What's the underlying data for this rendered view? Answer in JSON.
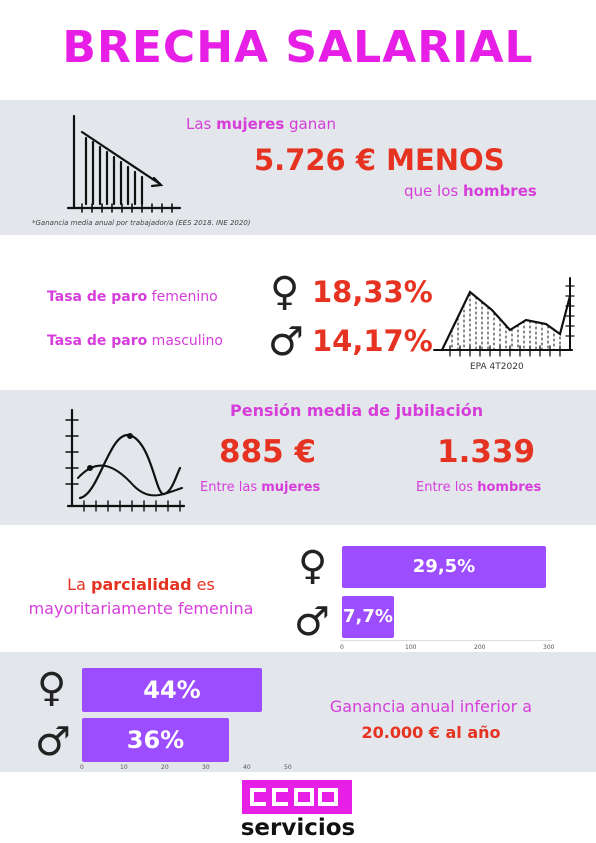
{
  "title": "BRECHA SALARIAL",
  "gap": {
    "line1_pre": "Las ",
    "line1_bold": "mujeres",
    "line1_post": " ganan",
    "amount": "5.726 € MENOS",
    "line3_pre": "que los ",
    "line3_bold": "hombres",
    "footnote": "*Ganancia media anual por trabajador/a (EES 2018. INE 2020)"
  },
  "unemployment": {
    "female_bold": "Tasa de paro",
    "female_rest": " femenino",
    "female_value": "18,33%",
    "male_bold": "Tasa de paro",
    "male_rest": " masculino",
    "male_value": "14,17%",
    "source": "EPA 4T2020"
  },
  "pension": {
    "heading": "Pensión media de jubilación",
    "women_value": "885 €",
    "women_pre": "Entre las ",
    "women_bold": "mujeres",
    "men_value": "1.339",
    "men_pre": "Entre los ",
    "men_bold": "hombres"
  },
  "partial": {
    "text_pre": "La ",
    "text_bold": "parcialidad",
    "text_mid": " es",
    "text_line2": "mayoritariamente femenina",
    "bars": [
      {
        "label": "29,5%",
        "value": 29.5,
        "fraction": 0.98
      },
      {
        "label": "7,7%",
        "value": 7.7,
        "fraction": 0.19
      }
    ],
    "axis_ticks": [
      "0",
      "100",
      "200",
      "300"
    ]
  },
  "income": {
    "bars": [
      {
        "label": "44%",
        "value": 44
      },
      {
        "label": "36%",
        "value": 36
      }
    ],
    "axis_ticks": [
      "0",
      "10",
      "20",
      "30",
      "40",
      "50"
    ],
    "text_line1": "Ganancia anual inferior a",
    "text_line2": "20.000 € al año"
  },
  "logo": {
    "word": "servicios",
    "brand_color": "#e61ee6"
  },
  "colors": {
    "title": "#e61ee6",
    "accent_text": "#d63ddb",
    "figure_red": "#e63221",
    "bar_purple": "#9b4dff",
    "band_grey": "#e3e6ea"
  },
  "icons": {
    "female": "female-sign",
    "male": "male-sign"
  }
}
